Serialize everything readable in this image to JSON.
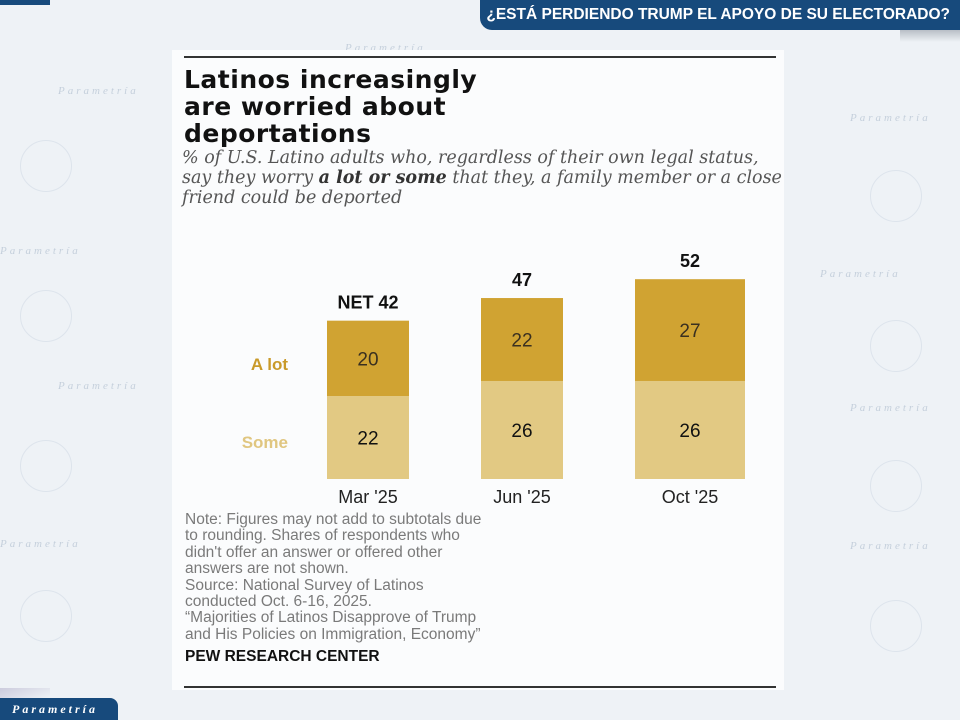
{
  "header": {
    "banner_title": "¿ESTÁ PERDIENDO TRUMP EL APOYO DE SU ELECTORADO?"
  },
  "watermark": "Parametría",
  "logo": "Parametría",
  "card": {
    "title_lines": [
      "Latinos increasingly",
      "are worried about",
      "deportations"
    ],
    "subtitle": {
      "part1": "% of U.S. Latino adults who, regardless of their own legal status, say they worry ",
      "bold": "a lot or some",
      "part2": " that they, a family member or a close friend could be deported"
    },
    "note_lines": [
      "Note: Figures may not add to subtotals due",
      "to rounding. Shares of respondents who",
      "didn't offer an answer or offered other",
      "answers are not shown.",
      "Source: National Survey of Latinos",
      "conducted Oct. 6-16, 2025.",
      "“Majorities of Latinos Disapprove of Trump",
      "and His Policies on Immigration, Economy”"
    ],
    "brand": "PEW RESEARCH CENTER"
  },
  "chart_data": {
    "type": "bar",
    "stacked": true,
    "categories": [
      "Mar '25",
      "Jun '25",
      "Oct '25"
    ],
    "series": [
      {
        "name": "Some",
        "values": [
          22,
          26,
          26
        ],
        "color": "#e2c983"
      },
      {
        "name": "A lot",
        "values": [
          20,
          22,
          27
        ],
        "color": "#d0a332"
      }
    ],
    "totals": [
      42,
      47,
      52
    ],
    "total_labels": [
      "NET 42",
      "47",
      "52"
    ],
    "legend_colors": {
      "A lot": "#c99a2a",
      "Some": "#e0c680"
    },
    "ylim": [
      0,
      52
    ]
  }
}
